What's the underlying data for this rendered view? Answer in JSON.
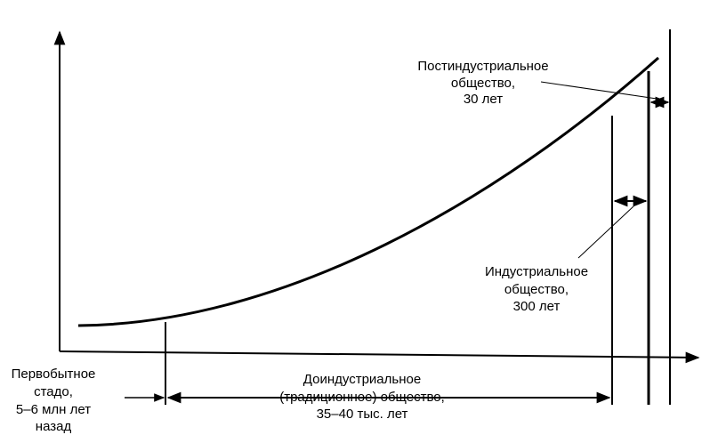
{
  "labels": [
    {
      "lines": [
        "Постиндустриальное",
        "общество,",
        "30 лет"
      ]
    },
    {
      "lines": [
        "Индустриальное",
        "общество,",
        "300 лет"
      ]
    },
    {
      "lines": [
        "Доиндустриальное",
        "(традиционное) общество,",
        "35–40 тыс. лет"
      ]
    },
    {
      "lines": [
        "Первобытное",
        "стадо,",
        "5–6 млн лет",
        "назад"
      ]
    }
  ]
}
